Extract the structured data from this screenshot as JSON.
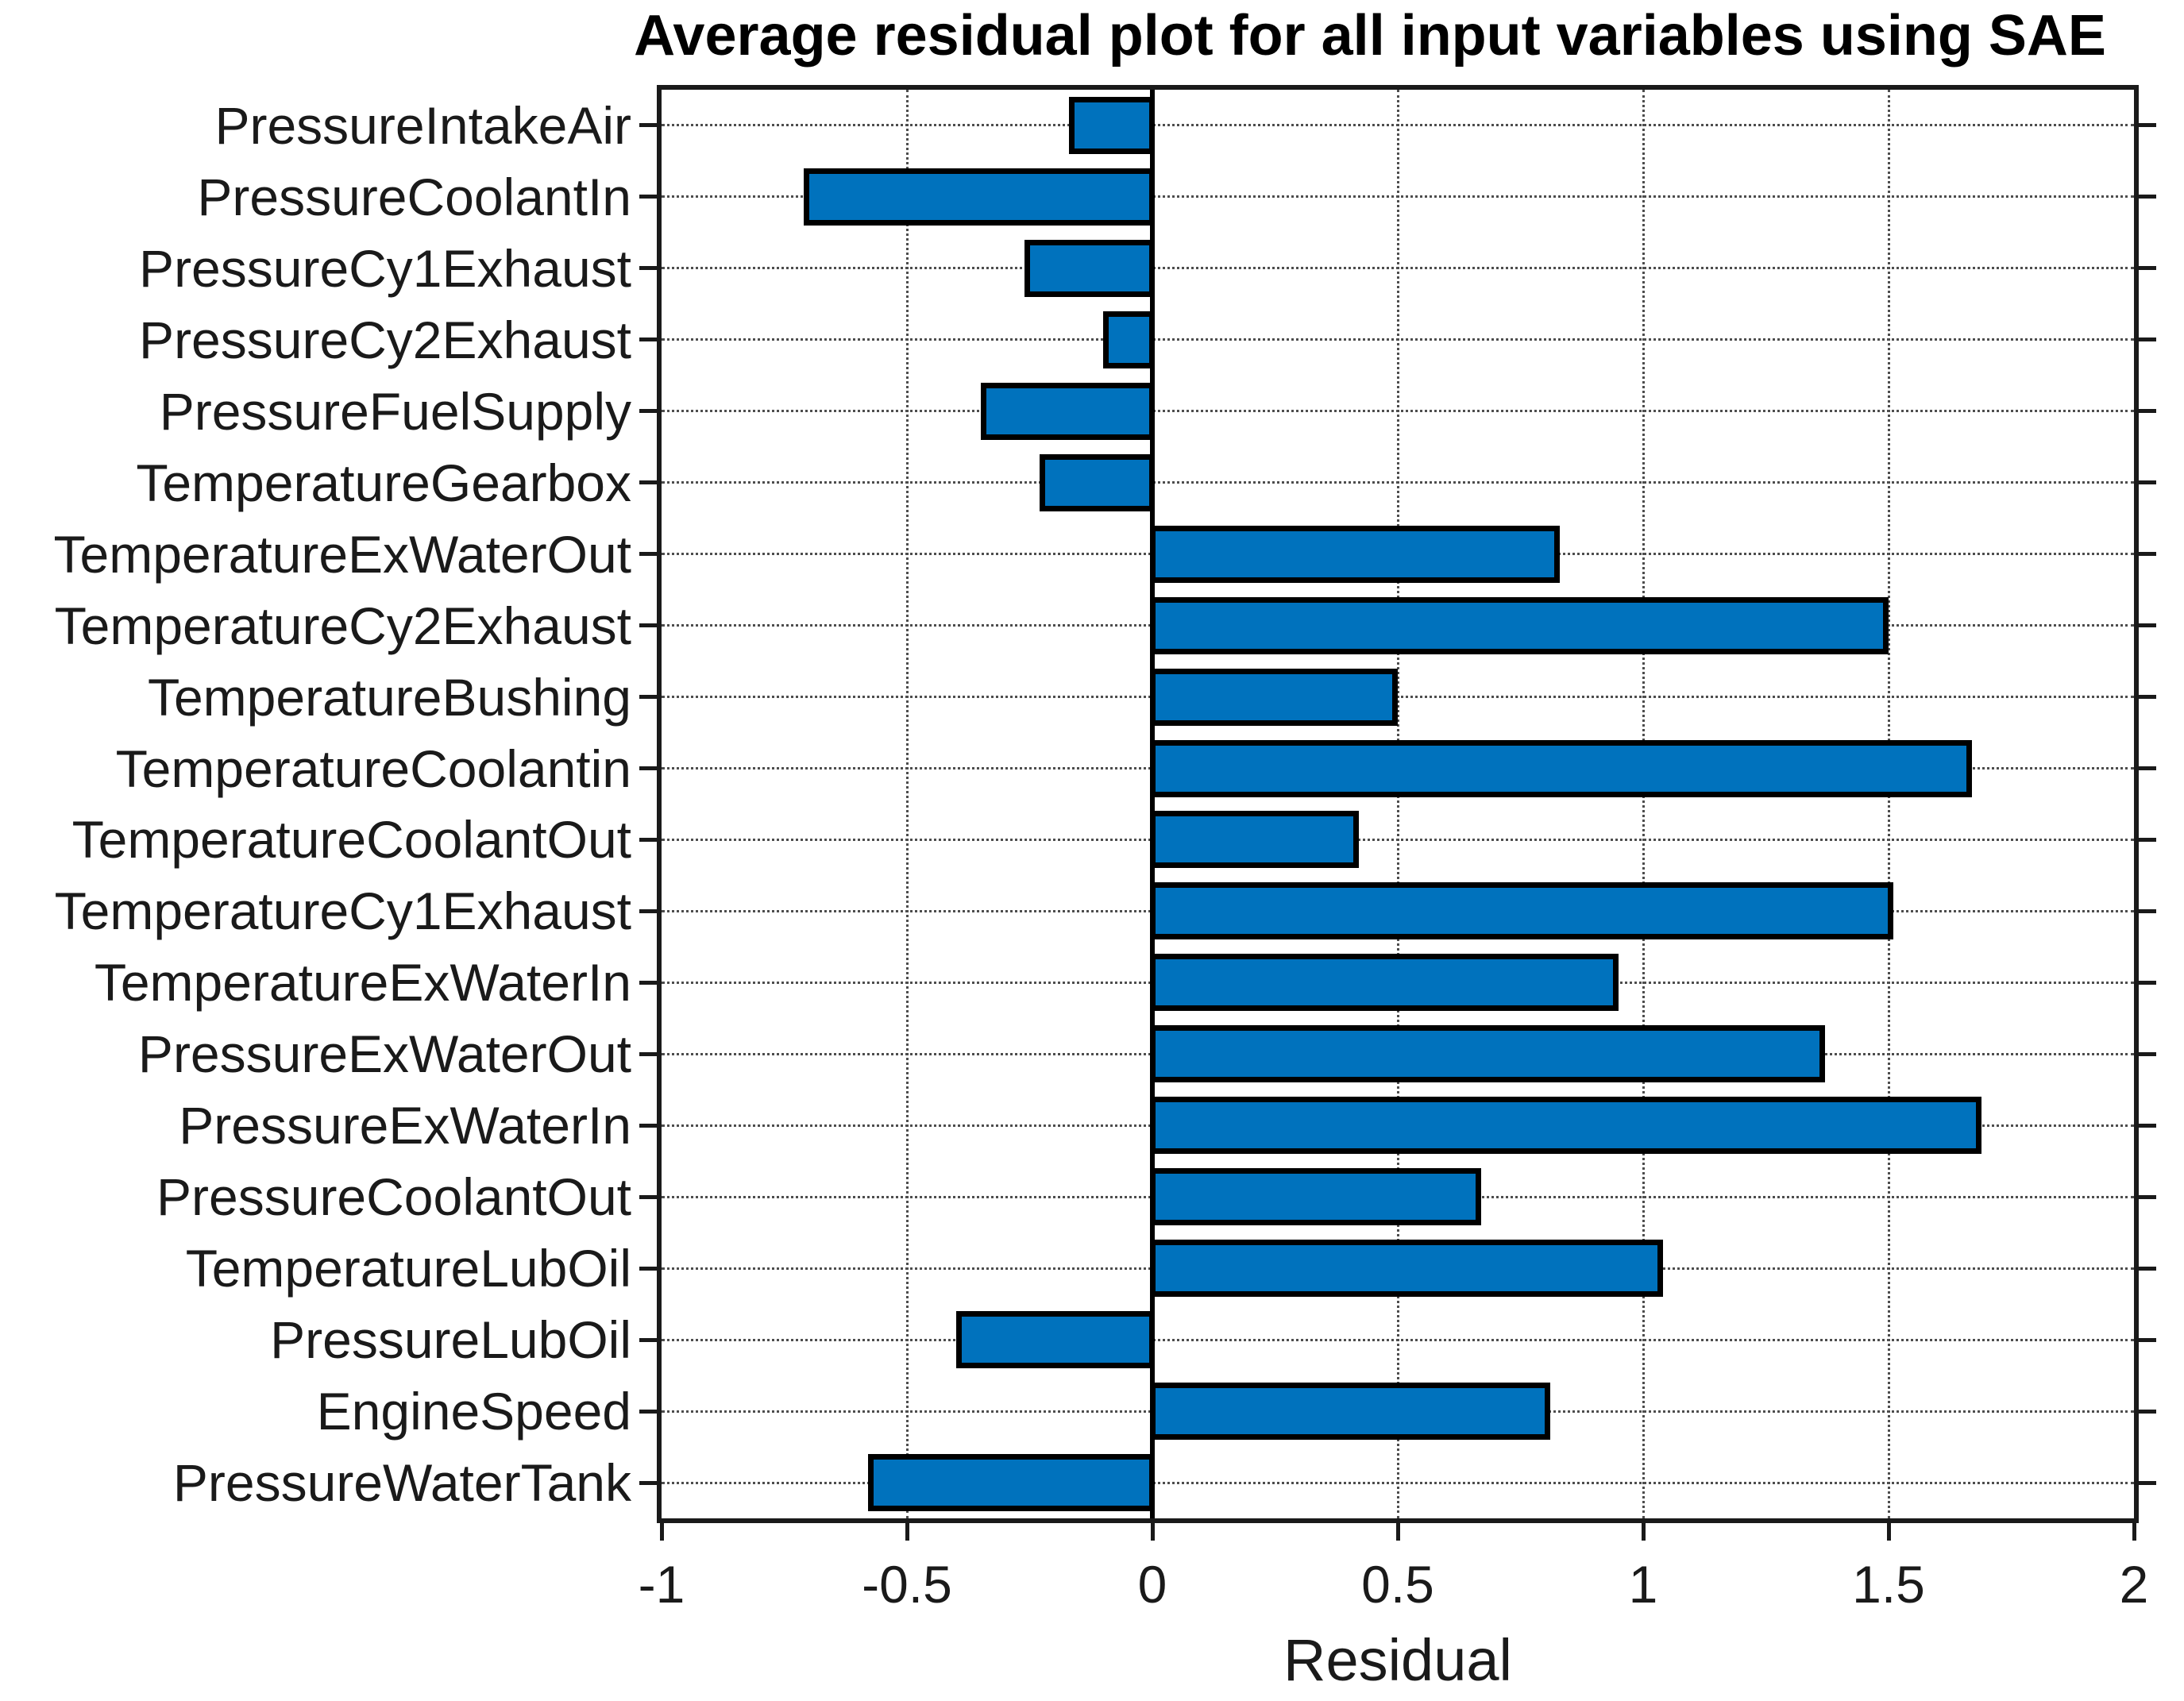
{
  "chart_data": {
    "type": "bar",
    "orientation": "horizontal",
    "title": "Average residual plot for all input variables using SAE",
    "xlabel": "Residual",
    "ylabel": "",
    "xlim": [
      -1,
      2
    ],
    "xticks": [
      -1,
      -0.5,
      0,
      0.5,
      1,
      1.5,
      2
    ],
    "xtick_labels": [
      "-1",
      "-0.5",
      "0",
      "0.5",
      "1",
      "1.5",
      "2"
    ],
    "grid": true,
    "legend": false,
    "bar_color": "#0072BD",
    "bar_edge_color": "#000000",
    "categories": [
      "PressureIntakeAir",
      "PressureCoolantIn",
      "PressureCy1Exhaust",
      "PressureCy2Exhaust",
      "PressureFuelSupply",
      "TemperatureGearbox",
      "TemperatureExWaterOut",
      "TemperatureCy2Exhaust",
      "TemperatureBushing",
      "TemperatureCoolantin",
      "TemperatureCoolantOut",
      "TemperatureCy1Exhaust",
      "TemperatureExWaterIn",
      "PressureExWaterOut",
      "PressureExWaterIn",
      "PressureCoolantOut",
      "TemperatureLubOil",
      "PressureLubOil",
      "EngineSpeed",
      "PressureWaterTank"
    ],
    "values": [
      -0.17,
      -0.71,
      -0.26,
      -0.1,
      -0.35,
      -0.23,
      0.83,
      1.5,
      0.5,
      1.67,
      0.42,
      1.51,
      0.95,
      1.37,
      1.69,
      0.67,
      1.04,
      -0.4,
      0.81,
      -0.58
    ]
  }
}
